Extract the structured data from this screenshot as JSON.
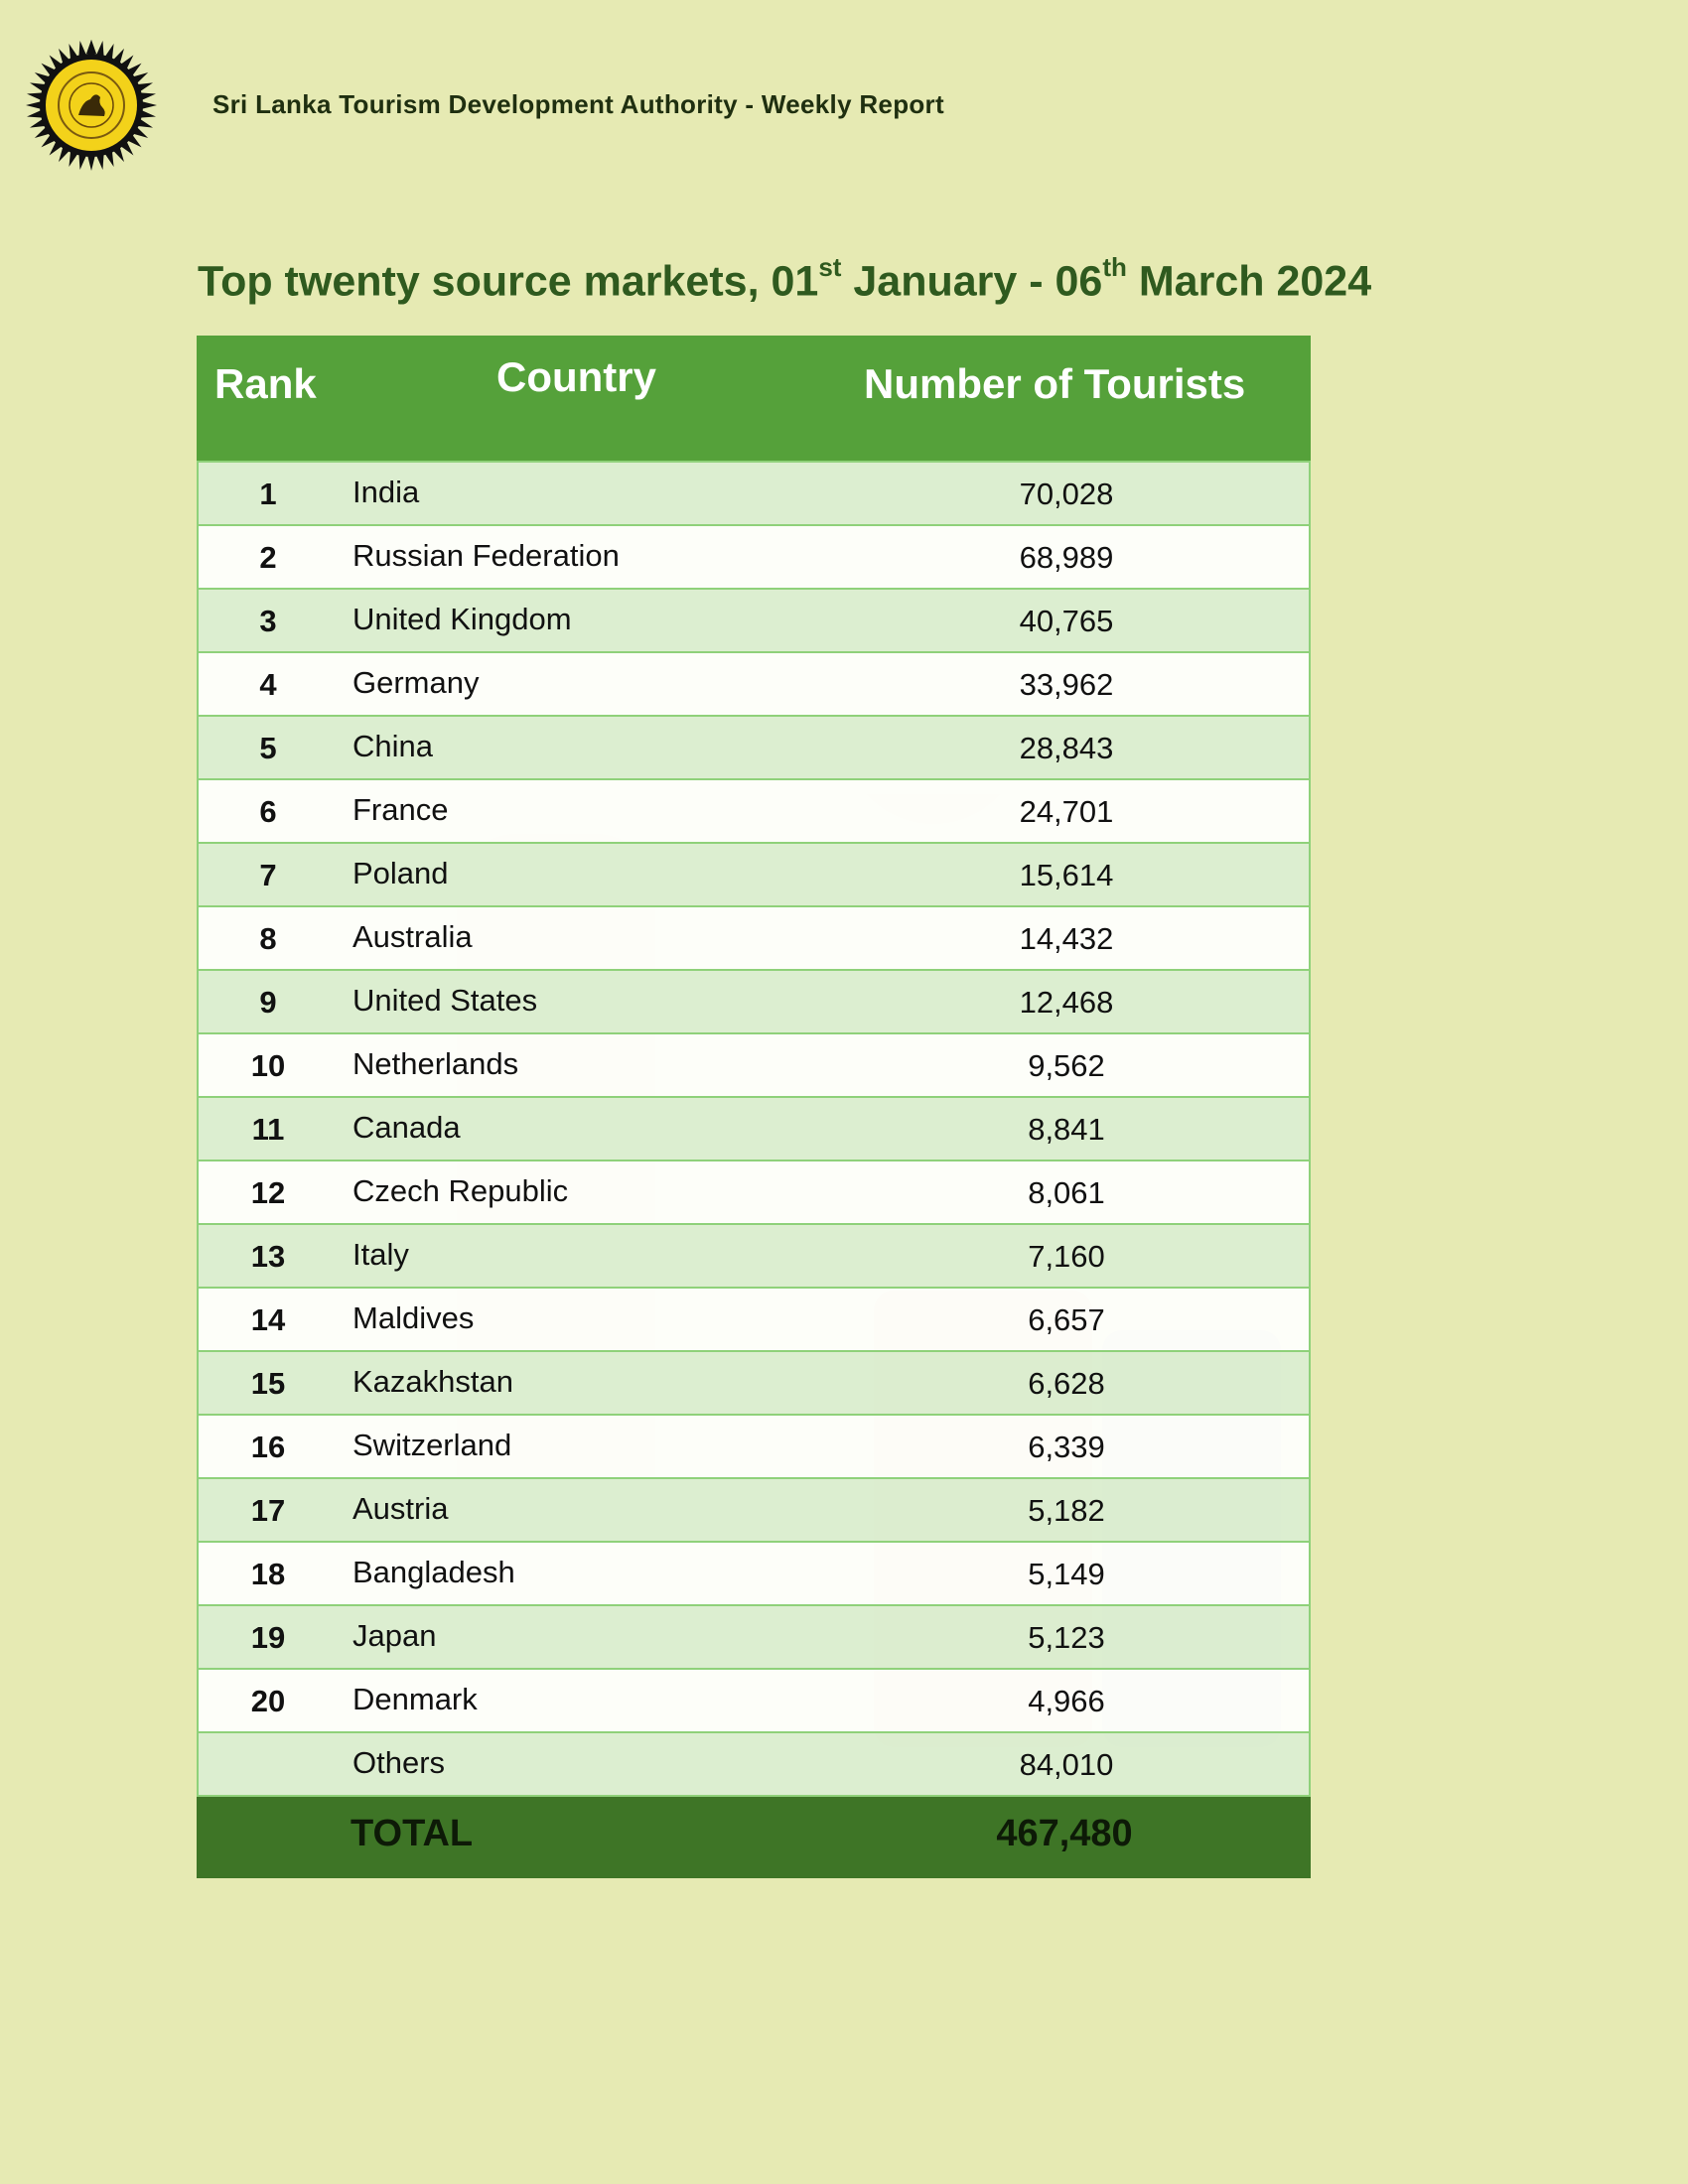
{
  "header": {
    "organization": "Sri Lanka Tourism Development Authority  - Weekly Report"
  },
  "title": {
    "pre": "Top twenty  source markets, 01",
    "sup1": "st",
    "mid": " January - 06",
    "sup2": "th",
    "post": " March 2024"
  },
  "table": {
    "columns": {
      "rank": "Rank",
      "country": "Country",
      "count": "Number  of Tourists"
    },
    "rows": [
      {
        "rank": "1",
        "country": "India",
        "count": "70,028"
      },
      {
        "rank": "2",
        "country": "Russian Federation",
        "count": "68,989"
      },
      {
        "rank": "3",
        "country": "United Kingdom",
        "count": "40,765"
      },
      {
        "rank": "4",
        "country": "Germany",
        "count": "33,962"
      },
      {
        "rank": "5",
        "country": "China",
        "count": "28,843"
      },
      {
        "rank": "6",
        "country": "France",
        "count": "24,701"
      },
      {
        "rank": "7",
        "country": "Poland",
        "count": "15,614"
      },
      {
        "rank": "8",
        "country": "Australia",
        "count": "14,432"
      },
      {
        "rank": "9",
        "country": "United States",
        "count": "12,468"
      },
      {
        "rank": "10",
        "country": "Netherlands",
        "count": "9,562"
      },
      {
        "rank": "11",
        "country": "Canada",
        "count": "8,841"
      },
      {
        "rank": "12",
        "country": "Czech Republic",
        "count": "8,061"
      },
      {
        "rank": "13",
        "country": "Italy",
        "count": "7,160"
      },
      {
        "rank": "14",
        "country": "Maldives",
        "count": "6,657"
      },
      {
        "rank": "15",
        "country": "Kazakhstan",
        "count": "6,628"
      },
      {
        "rank": "16",
        "country": "Switzerland",
        "count": "6,339"
      },
      {
        "rank": "17",
        "country": "Austria",
        "count": "5,182"
      },
      {
        "rank": "18",
        "country": "Bangladesh",
        "count": "5,149"
      },
      {
        "rank": "19",
        "country": "Japan",
        "count": "5,123"
      },
      {
        "rank": "20",
        "country": "Denmark",
        "count": "4,966"
      },
      {
        "rank": "",
        "country": "Others",
        "count": "84,010"
      }
    ],
    "total": {
      "label": "TOTAL",
      "value": "467,480"
    }
  },
  "colors": {
    "page_background": "#e6eab3",
    "header_green": "#55a13a",
    "total_green": "#3e7526",
    "title_green": "#2f5a1f"
  },
  "icons": {
    "logo": "sri-lanka-tourism-emblem"
  }
}
